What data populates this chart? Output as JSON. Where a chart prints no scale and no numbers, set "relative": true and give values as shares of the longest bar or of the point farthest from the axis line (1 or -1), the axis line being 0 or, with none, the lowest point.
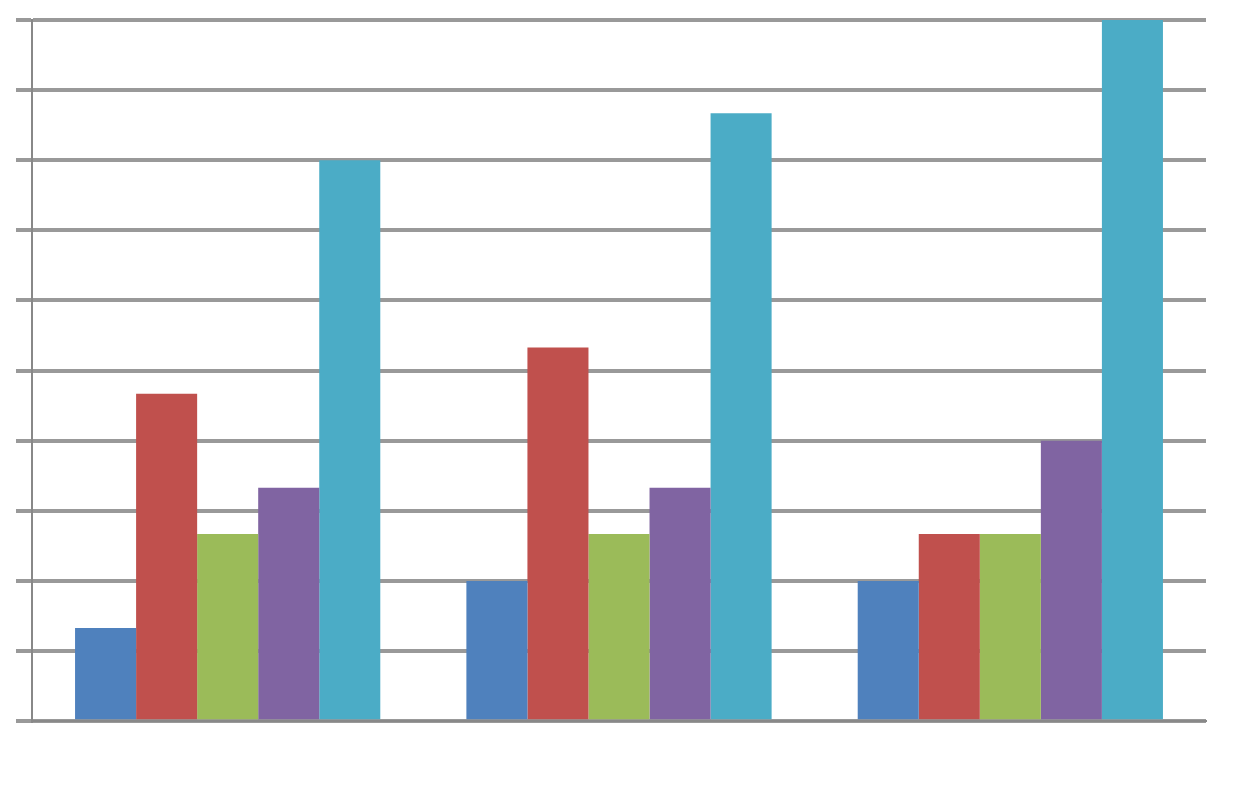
{
  "chart_data": {
    "type": "bar",
    "relative": true,
    "categories": [
      null,
      null,
      null
    ],
    "grid": "y",
    "legend": false,
    "series": [
      {
        "color": "#4f81bd",
        "values": [
          0.133,
          0.2,
          0.2
        ]
      },
      {
        "color": "#c0504d",
        "values": [
          0.467,
          0.533,
          0.267
        ]
      },
      {
        "color": "#9bbb59",
        "values": [
          0.267,
          0.267,
          0.267
        ]
      },
      {
        "color": "#8064a2",
        "values": [
          0.333,
          0.333,
          0.4
        ]
      },
      {
        "color": "#4bacc6",
        "values": [
          0.8,
          0.867,
          1
        ]
      }
    ]
  }
}
